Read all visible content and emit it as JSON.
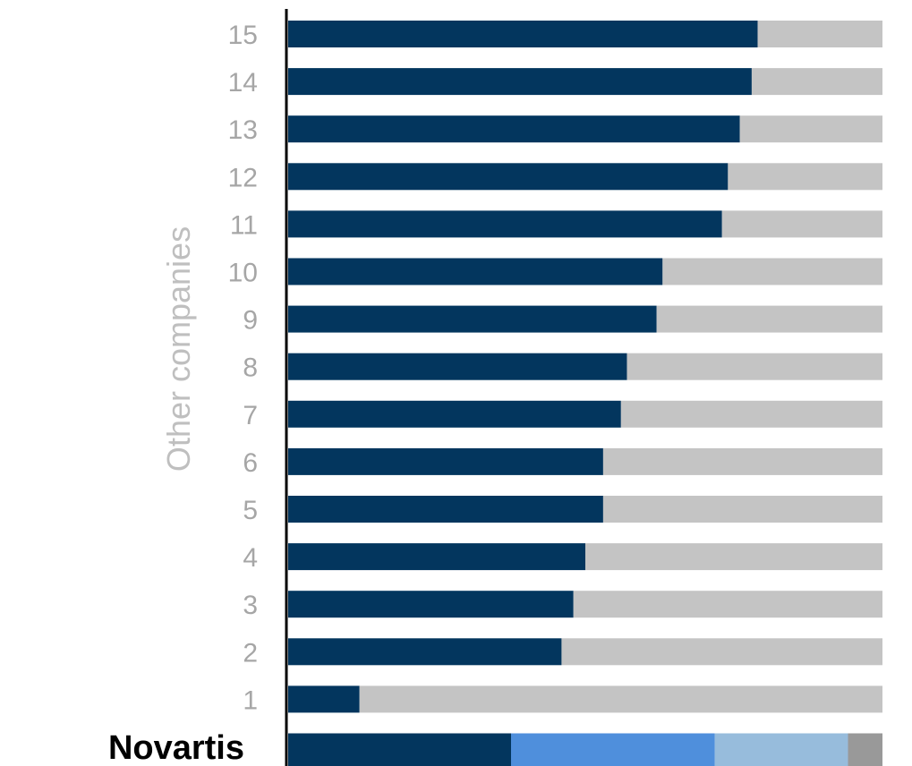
{
  "chart_data": {
    "type": "bar",
    "orientation": "horizontal",
    "stacked": true,
    "normalized_to": 100,
    "title": "",
    "ylabel": "Other companies",
    "xlabel": "",
    "xlim": [
      0,
      100
    ],
    "grid": false,
    "legend": "none",
    "categories": [
      "15",
      "14",
      "13",
      "12",
      "11",
      "10",
      "9",
      "8",
      "7",
      "6",
      "5",
      "4",
      "3",
      "2",
      "1"
    ],
    "series": [
      {
        "color": "#03365e",
        "values": [
          79,
          78,
          76,
          74,
          73,
          63,
          62,
          57,
          56,
          53,
          53,
          50,
          48,
          46,
          12
        ]
      },
      {
        "color": "#c4c4c4",
        "values": [
          21,
          22,
          24,
          26,
          27,
          37,
          38,
          43,
          44,
          47,
          47,
          50,
          52,
          54,
          88
        ]
      }
    ],
    "highlight": {
      "label": "Novartis",
      "segments": [
        {
          "color": "#03365e",
          "value": 37.5
        },
        {
          "color": "#4f8fdc",
          "value": 34.3
        },
        {
          "color": "#97bcdc",
          "value": 22.4
        },
        {
          "color": "#999999",
          "value": 5.8
        }
      ]
    }
  }
}
